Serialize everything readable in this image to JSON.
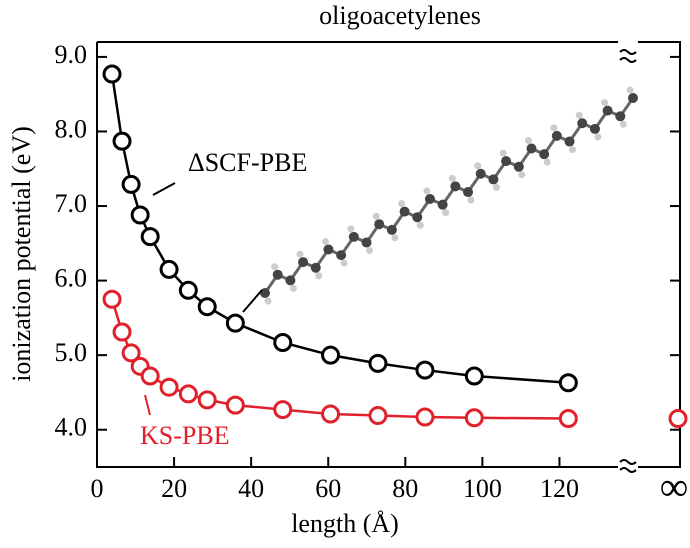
{
  "chart_data": {
    "type": "line",
    "title": "oligoacetylenes",
    "x_label": "length (Å)",
    "y_label": "ionization potential (eV)",
    "xlim": [
      0,
      130
    ],
    "xticks": [
      0,
      20,
      40,
      60,
      80,
      100,
      120
    ],
    "ylim": [
      3.5,
      9.2
    ],
    "yticks": [
      {
        "value": 4,
        "label": "4.0"
      },
      {
        "value": 5,
        "label": "5.0"
      },
      {
        "value": 6,
        "label": "6.0"
      },
      {
        "value": 7,
        "label": "7.0"
      },
      {
        "value": 8,
        "label": "8.0"
      },
      {
        "value": 9,
        "label": "9.0"
      }
    ],
    "x": [
      3.9,
      6.5,
      8.85,
      11.2,
      13.8,
      18.7,
      23.7,
      28.6,
      35.9,
      48.2,
      60.6,
      72.9,
      85.1,
      97.9,
      122.3
    ],
    "limit_label": "∞",
    "series": [
      {
        "name": "ΔSCF-PBE",
        "color": "#000000",
        "values": [
          8.77,
          7.87,
          7.29,
          6.88,
          6.59,
          6.15,
          5.87,
          5.65,
          5.43,
          5.17,
          5.0,
          4.89,
          4.8,
          4.72,
          4.63
        ]
      },
      {
        "name": "KS-PBE",
        "color": "#e0202a",
        "values": [
          5.75,
          5.31,
          5.03,
          4.85,
          4.72,
          4.57,
          4.48,
          4.4,
          4.33,
          4.27,
          4.21,
          4.19,
          4.17,
          4.16,
          4.15
        ],
        "limit": 4.15
      }
    ]
  }
}
